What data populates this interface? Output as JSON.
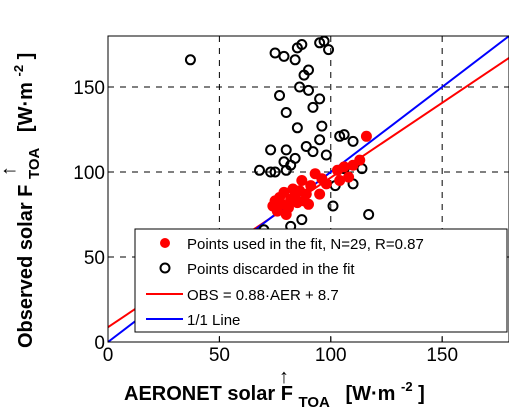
{
  "chart_data": {
    "type": "scatter",
    "xlabel": "AERONET solar F↑TOA [W·m⁻²]",
    "ylabel": "Observed solar F↑TOA [W·m⁻²]",
    "xlabel_parts": {
      "prefix": "AERONET solar F",
      "arrow": "↑",
      "sub": "TOA",
      "unit_pre": "[W·m",
      "unit_exp": "-2",
      "unit_post": "]"
    },
    "ylabel_parts": {
      "prefix": "Observed solar F",
      "arrow": "↑",
      "sub": "TOA",
      "unit_pre": "[W·m",
      "unit_exp": "-2",
      "unit_post": "]"
    },
    "xlim": [
      0,
      180
    ],
    "ylim": [
      0,
      180
    ],
    "x_ticks": [
      0,
      50,
      100,
      150
    ],
    "y_ticks": [
      0,
      50,
      100,
      150
    ],
    "grid": true,
    "grid_style": "dashed",
    "legend_position": "bottom-right",
    "series": [
      {
        "name": "Points used in the fit, N=29, R=0.87",
        "kind": "filled-marker",
        "color": "#ff0000",
        "points": [
          [
            74,
            80
          ],
          [
            75,
            83
          ],
          [
            76,
            77
          ],
          [
            77,
            85
          ],
          [
            78,
            81
          ],
          [
            79,
            88
          ],
          [
            80,
            75
          ],
          [
            81,
            79
          ],
          [
            82,
            84
          ],
          [
            83,
            90
          ],
          [
            84,
            86
          ],
          [
            85,
            82
          ],
          [
            86,
            89
          ],
          [
            87,
            95
          ],
          [
            88,
            83
          ],
          [
            89,
            87
          ],
          [
            90,
            81
          ],
          [
            91,
            92
          ],
          [
            93,
            99
          ],
          [
            95,
            87
          ],
          [
            96,
            96
          ],
          [
            98,
            93
          ],
          [
            103,
            101
          ],
          [
            104,
            95
          ],
          [
            106,
            103
          ],
          [
            108,
            97
          ],
          [
            110,
            104
          ],
          [
            113,
            107
          ],
          [
            116,
            121
          ]
        ]
      },
      {
        "name": "Points discarded in the fit",
        "kind": "open-marker",
        "color": "#000000",
        "points": [
          [
            37,
            166
          ],
          [
            75,
            170
          ],
          [
            79,
            168
          ],
          [
            85,
            173
          ],
          [
            87,
            175
          ],
          [
            90,
            160
          ],
          [
            95,
            176
          ],
          [
            97,
            177
          ],
          [
            99,
            172
          ],
          [
            84,
            166
          ],
          [
            88,
            157
          ],
          [
            86,
            150
          ],
          [
            90,
            148
          ],
          [
            77,
            145
          ],
          [
            92,
            138
          ],
          [
            95,
            143
          ],
          [
            80,
            135
          ],
          [
            96,
            127
          ],
          [
            85,
            126
          ],
          [
            104,
            121
          ],
          [
            106,
            122
          ],
          [
            95,
            119
          ],
          [
            89,
            115
          ],
          [
            80,
            113
          ],
          [
            73,
            113
          ],
          [
            84,
            108
          ],
          [
            98,
            110
          ],
          [
            92,
            112
          ],
          [
            110,
            118
          ],
          [
            79,
            106
          ],
          [
            82,
            104
          ],
          [
            114,
            102
          ],
          [
            106,
            102
          ],
          [
            68,
            101
          ],
          [
            73,
            100
          ],
          [
            80,
            101
          ],
          [
            102,
            92
          ],
          [
            110,
            93
          ],
          [
            101,
            80
          ],
          [
            75,
            100
          ],
          [
            117,
            75
          ],
          [
            70,
            66
          ],
          [
            82,
            68
          ],
          [
            87,
            72
          ]
        ]
      },
      {
        "name": "OBS = 0.88·AER + 8.7",
        "kind": "line",
        "color": "#ff0000",
        "slope": 0.88,
        "intercept": 8.7
      },
      {
        "name": "1/1 Line",
        "kind": "line",
        "color": "#0000ff",
        "slope": 1,
        "intercept": 0
      }
    ]
  }
}
